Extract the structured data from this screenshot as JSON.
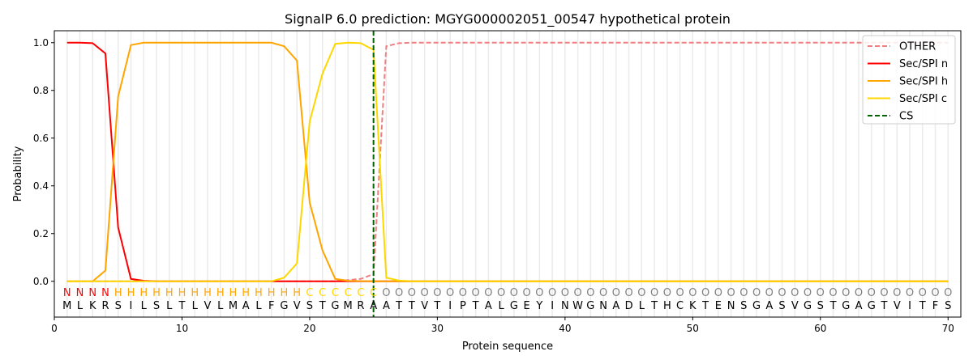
{
  "chart_data": {
    "type": "line",
    "title": "SignalP 6.0 prediction: MGYG000002051_00547 hypothetical protein",
    "xlabel": "Protein sequence",
    "ylabel": "Probability",
    "xlim": [
      0,
      71
    ],
    "ylim": [
      -0.15,
      1.05
    ],
    "xticks": [
      0,
      10,
      20,
      30,
      40,
      50,
      60,
      70
    ],
    "yticks": [
      0.0,
      0.2,
      0.4,
      0.6,
      0.8,
      1.0
    ],
    "legend_position": "top-right",
    "sequence": "MLKRSILSLTLVLMALFGVSTGMRAATTVTIPTALGEYINWGNADLTHCKTENSGASVGSTGAGTVITFS",
    "labels": "NNNNHHHHHHHHHHHHHHHCCCCCCOOOOOOOOOOOOOOOOOOOOOOOOOOOOOOOOOOOOOOOOOOOOO",
    "label_colors": {
      "N": "#ff0000",
      "H": "#ffa500",
      "C": "#ffd700",
      "O": "#808080"
    },
    "cs_position": 25,
    "series": [
      {
        "name": "OTHER",
        "color": "#f08080",
        "dash": true,
        "values": {
          "1": 0,
          "22": 0,
          "23": 0.005,
          "24": 0.01,
          "25": 0.03,
          "26": 0.985,
          "27": 0.998,
          "28": 1,
          "70": 1
        }
      },
      {
        "name": "Sec/SPI n",
        "color": "#ff0000",
        "dash": false,
        "values": {
          "1": 1,
          "2": 1,
          "3": 0.998,
          "4": 0.955,
          "5": 0.225,
          "6": 0.01,
          "7": 0.002,
          "8": 0,
          "70": 0
        }
      },
      {
        "name": "Sec/SPI h",
        "color": "#ffa500",
        "dash": false,
        "values": {
          "1": 0,
          "3": 0,
          "4": 0.045,
          "5": 0.775,
          "6": 0.99,
          "7": 1,
          "17": 1,
          "18": 0.985,
          "19": 0.925,
          "20": 0.33,
          "21": 0.13,
          "22": 0.01,
          "23": 0.002,
          "24": 0.001,
          "25": 0,
          "70": 0
        }
      },
      {
        "name": "Sec/SPI c",
        "color": "#ffd700",
        "dash": false,
        "values": {
          "1": 0,
          "17": 0,
          "18": 0.015,
          "19": 0.075,
          "20": 0.67,
          "21": 0.87,
          "22": 0.995,
          "23": 1,
          "24": 0.998,
          "25": 0.97,
          "26": 0.015,
          "27": 0.003,
          "28": 0,
          "70": 0
        }
      },
      {
        "name": "CS",
        "color": "#006400",
        "dash": true
      }
    ]
  }
}
